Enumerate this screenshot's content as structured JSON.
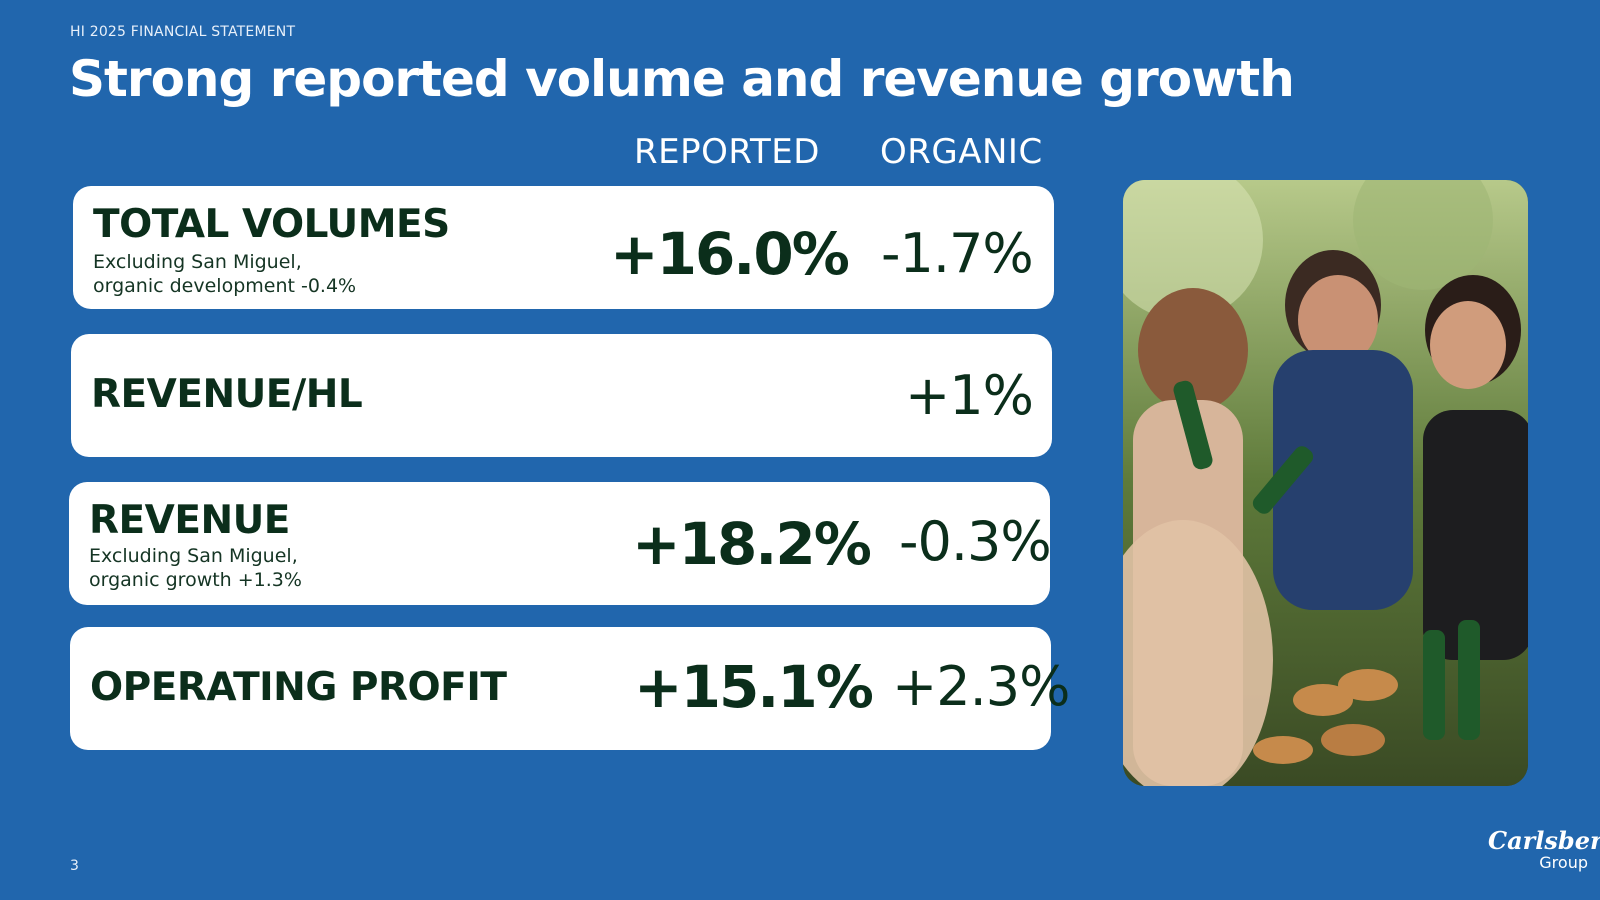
{
  "header": {
    "kicker": "HI 2025 FINANCIAL STATEMENT",
    "title": "Strong reported volume and revenue growth"
  },
  "columns": {
    "reported": "REPORTED",
    "organic": "ORGANIC"
  },
  "metrics": [
    {
      "label": "TOTAL VOLUMES",
      "note_line1": "Excluding San Miguel,",
      "note_line2": "organic development -0.4%",
      "reported": "+16.0%",
      "organic": "-1.7%"
    },
    {
      "label": "REVENUE/HL",
      "reported": "",
      "organic": "+1%"
    },
    {
      "label": "REVENUE",
      "note_line1": "Excluding San Miguel,",
      "note_line2": "organic growth +1.3%",
      "reported": "+18.2%",
      "organic": "-0.3%"
    },
    {
      "label": "OPERATING PROFIT",
      "reported": "+15.1%",
      "organic": "+2.3%"
    }
  ],
  "footer": {
    "page_number": "3",
    "logo_brand": "Carlsberg",
    "logo_group": "Group"
  },
  "colors": {
    "background": "#2166ad",
    "card": "#ffffff",
    "text_dark_green": "#0b2e1b"
  },
  "icons": {
    "photo": "people-drinking-beer-photo",
    "logo": "carlsberg-logo"
  }
}
